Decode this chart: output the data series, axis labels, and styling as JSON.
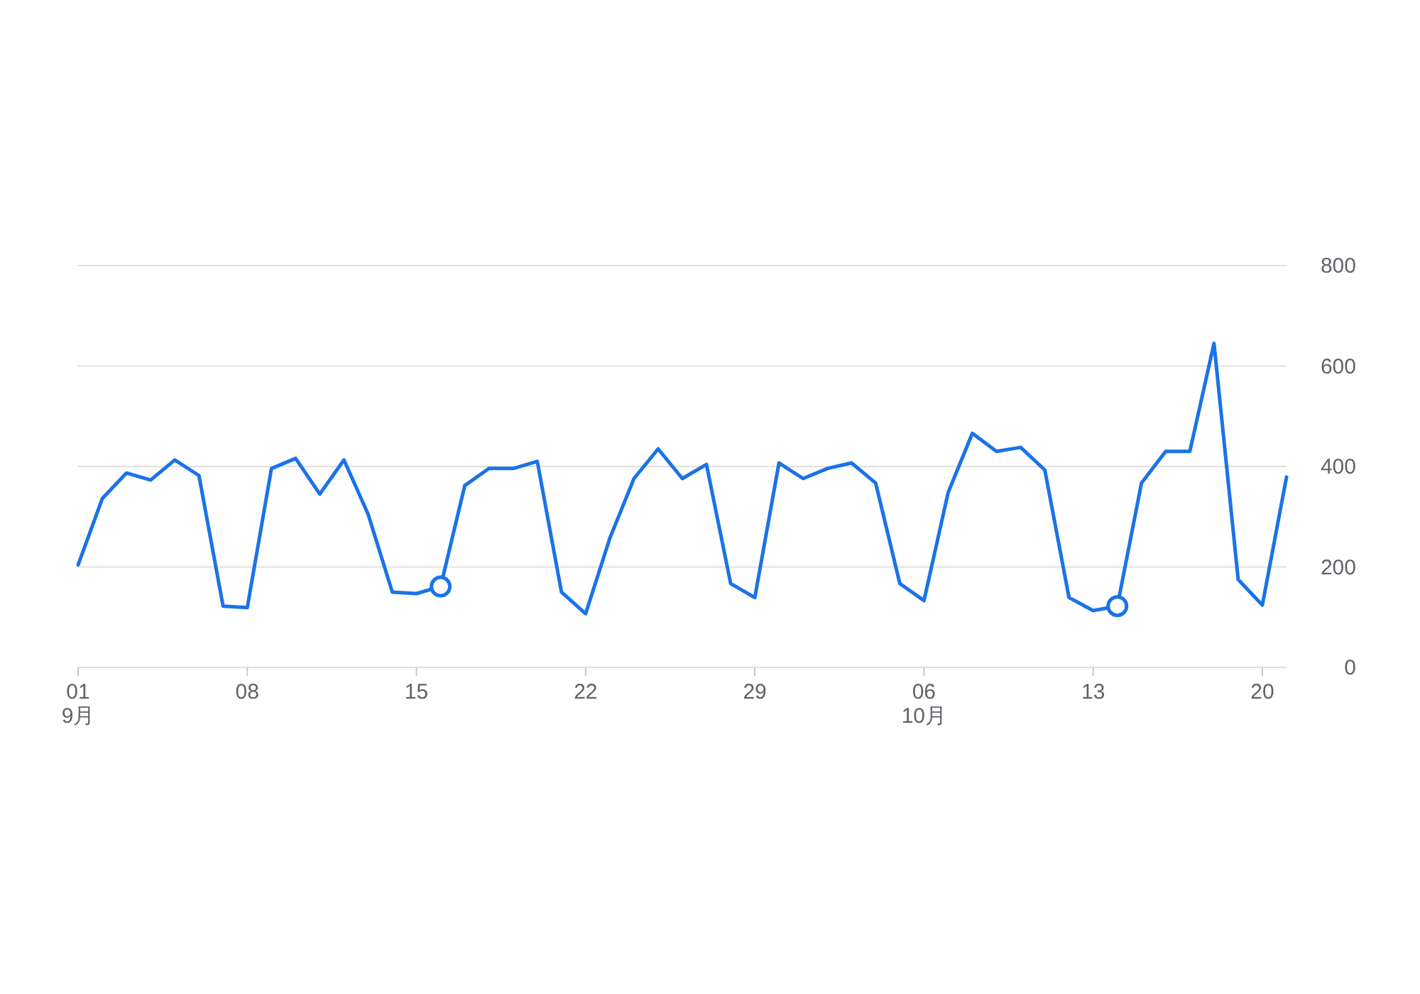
{
  "chart_data": {
    "type": "line",
    "x": [
      "--09-01",
      "--09-02",
      "--09-03",
      "--09-04",
      "--09-05",
      "--09-06",
      "--09-07",
      "--09-08",
      "--09-09",
      "--09-10",
      "--09-11",
      "--09-12",
      "--09-13",
      "--09-14",
      "--09-15",
      "--09-16",
      "--09-17",
      "--09-18",
      "--09-19",
      "--09-20",
      "--09-21",
      "--09-22",
      "--09-23",
      "--09-24",
      "--09-25",
      "--09-26",
      "--09-27",
      "--09-28",
      "--09-29",
      "--09-30",
      "--10-01",
      "--10-02",
      "--10-03",
      "--10-04",
      "--10-05",
      "--10-06",
      "--10-07",
      "--10-08",
      "--10-09",
      "--10-10",
      "--10-11",
      "--10-12",
      "--10-13",
      "--10-14",
      "--10-15",
      "--10-16",
      "--10-17",
      "--10-18",
      "--10-19",
      "--10-20",
      "--10-21"
    ],
    "series": [
      {
        "color": "#1a73e8",
        "marker": "none",
        "values": [
          204,
          336,
          387,
          373,
          413,
          382,
          122,
          119,
          396,
          416,
          345,
          413,
          305,
          150,
          147,
          161,
          362,
          396,
          396,
          410,
          150,
          107,
          257,
          376,
          435,
          376,
          404,
          167,
          139,
          407,
          376,
          396,
          407,
          367,
          167,
          133,
          348,
          466,
          430,
          438,
          393,
          139,
          113,
          122,
          367,
          430,
          430,
          645,
          175,
          124,
          379
        ]
      },
      {
        "type": "scatter",
        "color": "#1a73e8",
        "marker": "circle",
        "x": [
          "--09-16",
          "--10-14"
        ],
        "values": [
          161,
          122
        ]
      }
    ],
    "xlim": [
      "--09-01",
      "--10-21"
    ],
    "xticks": [
      {
        "value": "--09-01",
        "label": "01\n9月"
      },
      {
        "value": "--09-08",
        "label": "08"
      },
      {
        "value": "--09-15",
        "label": "15"
      },
      {
        "value": "--09-22",
        "label": "22"
      },
      {
        "value": "--09-29",
        "label": "29"
      },
      {
        "value": "--10-06",
        "label": "06\n10月"
      },
      {
        "value": "--10-13",
        "label": "13"
      },
      {
        "value": "--10-20",
        "label": "20"
      }
    ],
    "ylim": [
      0,
      800
    ],
    "yticks": [
      0,
      200,
      400,
      600,
      800
    ],
    "grid": "y"
  }
}
